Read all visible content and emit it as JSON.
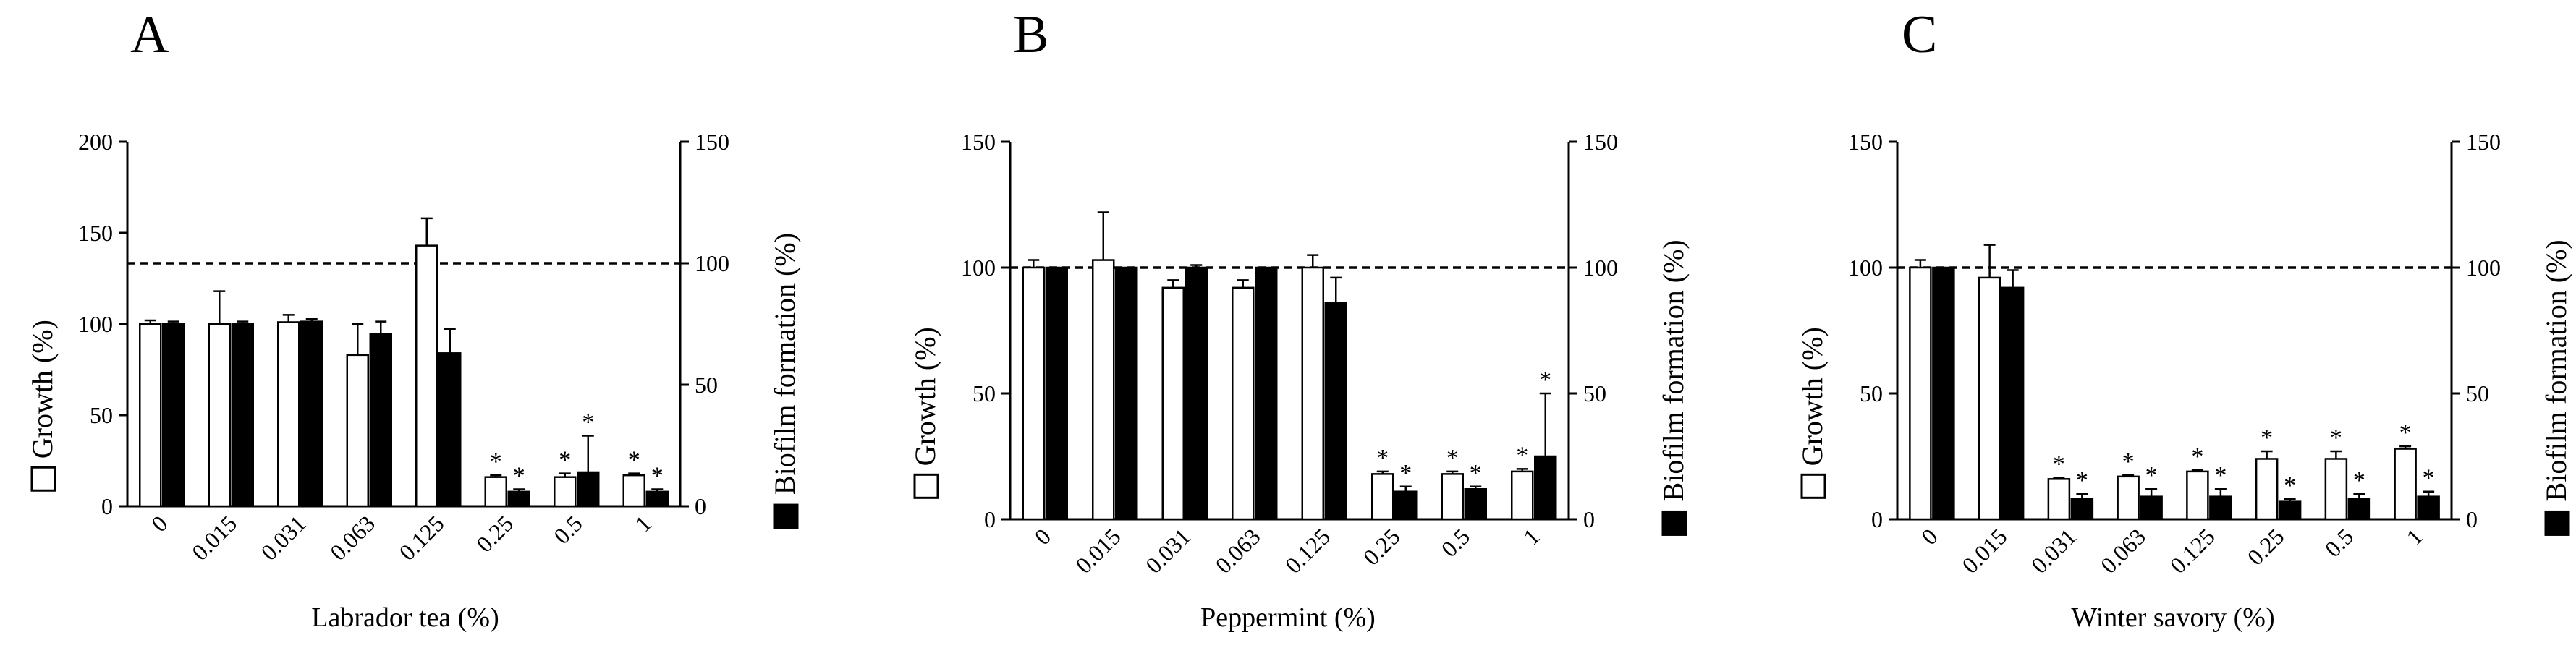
{
  "figure": {
    "reference_line_pct": 100,
    "growth_bar_color": "#ffffff",
    "biofilm_bar_color": "#000000",
    "axis_color": "#000000"
  },
  "chart_data": [
    {
      "type": "bar",
      "panel_label": "A",
      "xlabel": "Labrador tea (%)",
      "ylabel_left": "Growth (%)",
      "ylabel_right": "Biofilm formation (%)",
      "left_axis": {
        "ylim": [
          0,
          200
        ],
        "ticks": [
          0,
          50,
          100,
          150,
          200
        ]
      },
      "right_axis": {
        "ylim": [
          0,
          150
        ],
        "ticks": [
          0,
          50,
          100,
          150
        ]
      },
      "reference_line": 100,
      "categories": [
        "0",
        "0.015",
        "0.031",
        "0.063",
        "0.125",
        "0.25",
        "0.5",
        "1"
      ],
      "series": [
        {
          "name": "Growth (%)",
          "axis": "left",
          "values": [
            100,
            100,
            101,
            83,
            143,
            16,
            16,
            17
          ],
          "errors": [
            2,
            18,
            4,
            17,
            15,
            1,
            2,
            1
          ],
          "significant": [
            false,
            false,
            false,
            false,
            false,
            true,
            true,
            true
          ]
        },
        {
          "name": "Biofilm formation (%)",
          "axis": "right",
          "values": [
            75,
            75,
            76,
            71,
            63,
            6,
            14,
            6
          ],
          "errors": [
            1,
            1,
            1,
            5,
            10,
            1,
            15,
            1
          ],
          "significant": [
            false,
            false,
            false,
            false,
            false,
            true,
            true,
            true
          ]
        }
      ]
    },
    {
      "type": "bar",
      "panel_label": "B",
      "xlabel": "Peppermint (%)",
      "ylabel_left": "Growth (%)",
      "ylabel_right": "Biofilm formation (%)",
      "left_axis": {
        "ylim": [
          0,
          150
        ],
        "ticks": [
          0,
          50,
          100,
          150
        ]
      },
      "right_axis": {
        "ylim": [
          0,
          150
        ],
        "ticks": [
          0,
          50,
          100,
          150
        ]
      },
      "reference_line": 100,
      "categories": [
        "0",
        "0.015",
        "0.031",
        "0.063",
        "0.125",
        "0.25",
        "0.5",
        "1"
      ],
      "series": [
        {
          "name": "Growth (%)",
          "axis": "left",
          "values": [
            100,
            103,
            92,
            92,
            100,
            18,
            18,
            19
          ],
          "errors": [
            3,
            19,
            3,
            3,
            5,
            1,
            1,
            1
          ],
          "significant": [
            false,
            false,
            false,
            false,
            false,
            true,
            true,
            true
          ]
        },
        {
          "name": "Biofilm formation (%)",
          "axis": "right",
          "values": [
            100,
            100,
            100,
            100,
            86,
            11,
            12,
            25
          ],
          "errors": [
            0,
            0,
            1,
            0,
            10,
            2,
            1,
            25
          ],
          "significant": [
            false,
            false,
            false,
            false,
            false,
            true,
            true,
            true
          ]
        }
      ]
    },
    {
      "type": "bar",
      "panel_label": "C",
      "xlabel": "Winter savory (%)",
      "ylabel_left": "Growth (%)",
      "ylabel_right": "Biofilm formation (%)",
      "left_axis": {
        "ylim": [
          0,
          150
        ],
        "ticks": [
          0,
          50,
          100,
          150
        ]
      },
      "right_axis": {
        "ylim": [
          0,
          150
        ],
        "ticks": [
          0,
          50,
          100,
          150
        ]
      },
      "reference_line": 100,
      "categories": [
        "0",
        "0.015",
        "0.031",
        "0.063",
        "0.125",
        "0.25",
        "0.5",
        "1"
      ],
      "series": [
        {
          "name": "Growth (%)",
          "axis": "left",
          "values": [
            100,
            96,
            16,
            17,
            19,
            24,
            24,
            28
          ],
          "errors": [
            3,
            13,
            0.5,
            0.5,
            0.5,
            3,
            3,
            1
          ],
          "significant": [
            false,
            false,
            true,
            true,
            true,
            true,
            true,
            true
          ]
        },
        {
          "name": "Biofilm formation (%)",
          "axis": "right",
          "values": [
            100,
            92,
            8,
            9,
            9,
            7,
            8,
            9
          ],
          "errors": [
            0,
            7,
            2,
            3,
            3,
            1,
            2,
            2
          ],
          "significant": [
            false,
            false,
            true,
            true,
            true,
            true,
            true,
            true
          ]
        }
      ]
    }
  ]
}
